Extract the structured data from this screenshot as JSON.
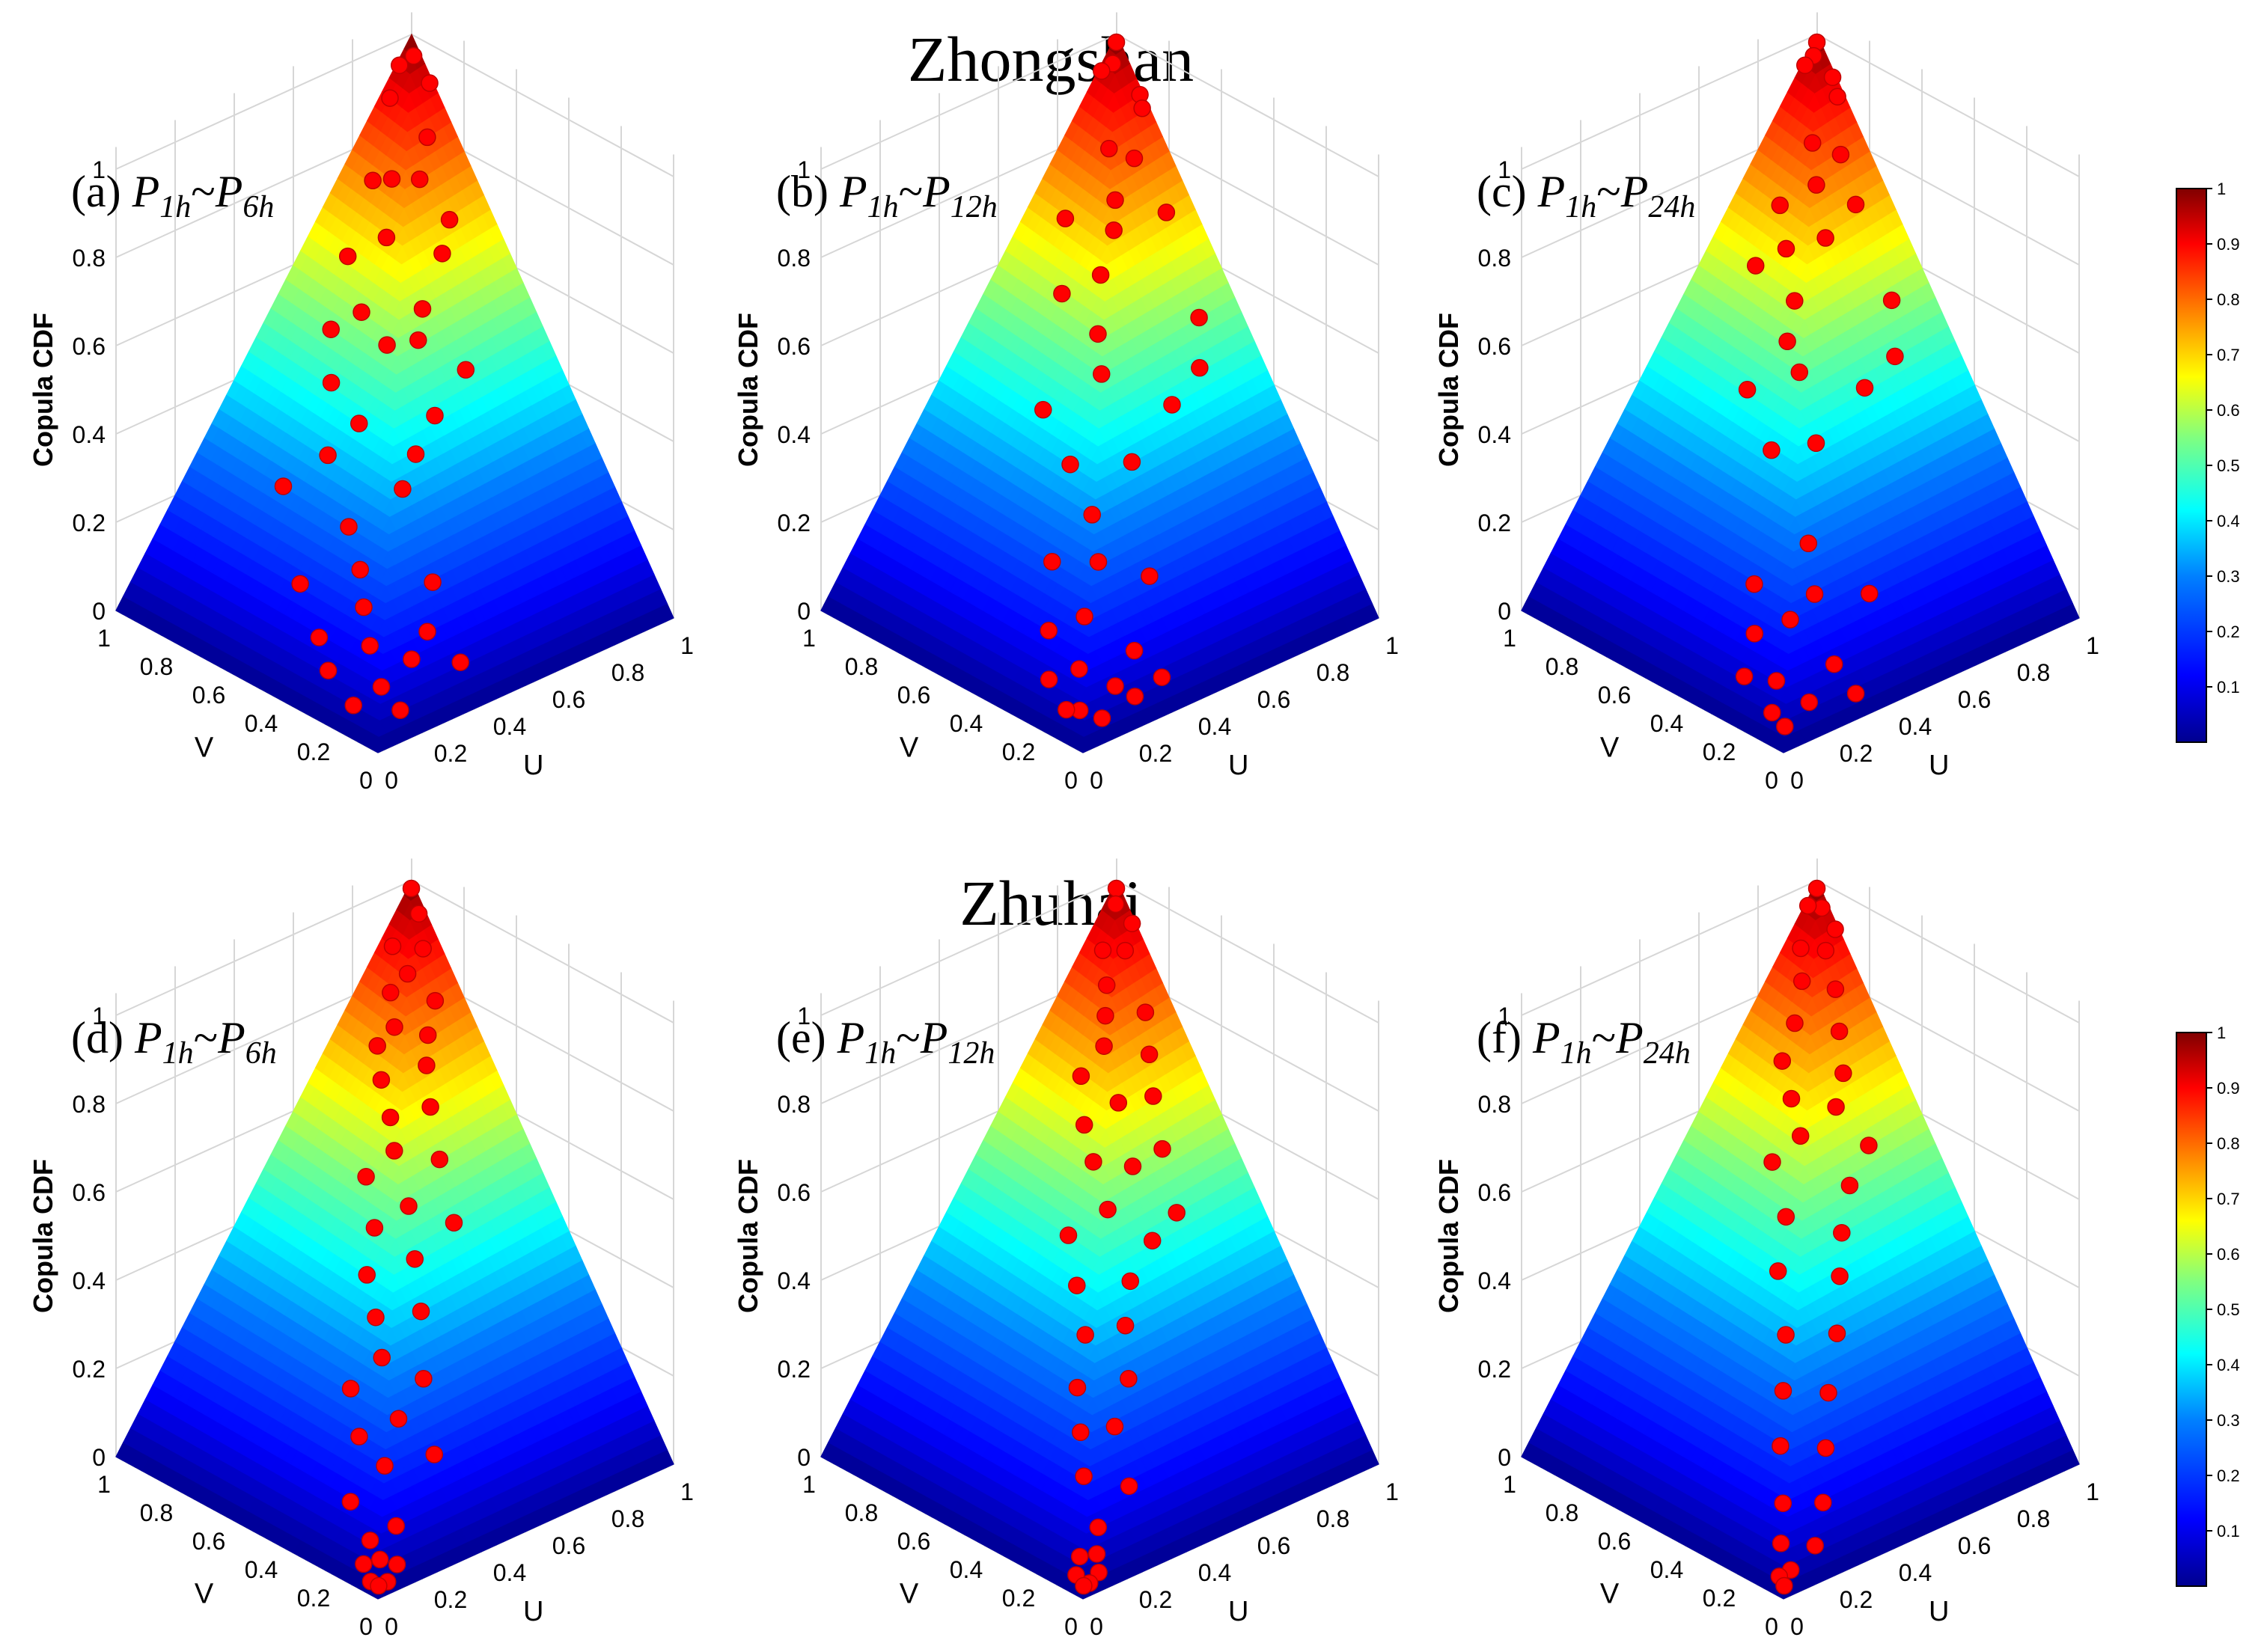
{
  "sections": [
    {
      "title": "Zhongshan"
    },
    {
      "title": "Zhuhai"
    }
  ],
  "axes": {
    "z_label": "Copula CDF",
    "u_label": "U",
    "v_label": "V",
    "z_ticks": [
      "0",
      "0.2",
      "0.4",
      "0.6",
      "0.8",
      "1"
    ],
    "u_ticks": [
      "0",
      "0.2",
      "0.4",
      "0.6",
      "0.8",
      "1"
    ],
    "v_ticks": [
      "0",
      "0.2",
      "0.4",
      "0.6",
      "0.8",
      "1"
    ]
  },
  "colorbar": {
    "ticks": [
      "0.1",
      "0.2",
      "0.3",
      "0.4",
      "0.5",
      "0.6",
      "0.7",
      "0.8",
      "0.9",
      "1"
    ],
    "colormap": [
      "#00008F",
      "#0000FF",
      "#0080FF",
      "#00FFFF",
      "#80FF80",
      "#FFFF00",
      "#FF8000",
      "#FF0000",
      "#800000"
    ]
  },
  "marker_color": "#FF0000",
  "chart_data": [
    {
      "type": "scatter",
      "panel": "(a)",
      "title_parts": {
        "prefix": "(a)",
        "p1": "P",
        "s1": "1h",
        "sep": "~",
        "p2": "P",
        "s2": "6h"
      },
      "xlabel": "U",
      "ylabel": "V",
      "zlabel": "Copula CDF",
      "xlim": [
        0,
        1
      ],
      "ylim": [
        0,
        1
      ],
      "zlim": [
        0,
        1
      ],
      "surface": "copula CDF C(u,v)",
      "points": [
        [
          0.98,
          0.97
        ],
        [
          0.95,
          0.99
        ],
        [
          0.99,
          0.92
        ],
        [
          0.9,
          0.97
        ],
        [
          0.92,
          0.85
        ],
        [
          0.85,
          0.8
        ],
        [
          0.8,
          0.85
        ],
        [
          0.88,
          0.72
        ],
        [
          0.78,
          0.9
        ],
        [
          0.72,
          0.78
        ],
        [
          0.82,
          0.68
        ],
        [
          0.66,
          0.86
        ],
        [
          0.7,
          0.62
        ],
        [
          0.6,
          0.74
        ],
        [
          0.55,
          0.8
        ],
        [
          0.65,
          0.58
        ],
        [
          0.58,
          0.62
        ],
        [
          0.48,
          0.72
        ],
        [
          0.74,
          0.5
        ],
        [
          0.45,
          0.58
        ],
        [
          0.6,
          0.46
        ],
        [
          0.38,
          0.62
        ],
        [
          0.5,
          0.42
        ],
        [
          0.3,
          0.7
        ],
        [
          0.42,
          0.38
        ],
        [
          0.3,
          0.45
        ],
        [
          0.25,
          0.35
        ],
        [
          0.38,
          0.22
        ],
        [
          0.18,
          0.5
        ],
        [
          0.2,
          0.28
        ],
        [
          0.12,
          0.36
        ],
        [
          0.3,
          0.15
        ],
        [
          0.22,
          0.12
        ],
        [
          0.15,
          0.2
        ],
        [
          0.1,
          0.1
        ],
        [
          0.08,
          0.28
        ],
        [
          0.35,
          0.08
        ],
        [
          0.05,
          0.15
        ],
        [
          0.12,
          0.05
        ]
      ]
    },
    {
      "type": "scatter",
      "panel": "(b)",
      "title_parts": {
        "prefix": "(b)",
        "p1": "P",
        "s1": "1h",
        "sep": "~",
        "p2": "P",
        "s2": "12h"
      },
      "xlabel": "U",
      "ylabel": "V",
      "zlabel": "Copula CDF",
      "xlim": [
        0,
        1
      ],
      "ylim": [
        0,
        1
      ],
      "zlim": [
        0,
        1
      ],
      "surface": "copula CDF C(u,v)",
      "points": [
        [
          0.99,
          0.99
        ],
        [
          0.96,
          0.97
        ],
        [
          0.94,
          0.99
        ],
        [
          0.99,
          0.9
        ],
        [
          0.98,
          0.88
        ],
        [
          0.9,
          0.82
        ],
        [
          0.85,
          0.86
        ],
        [
          0.8,
          0.78
        ],
        [
          0.92,
          0.72
        ],
        [
          0.72,
          0.88
        ],
        [
          0.76,
          0.74
        ],
        [
          0.68,
          0.7
        ],
        [
          0.62,
          0.78
        ],
        [
          0.88,
          0.55
        ],
        [
          0.6,
          0.62
        ],
        [
          0.82,
          0.48
        ],
        [
          0.55,
          0.55
        ],
        [
          0.7,
          0.45
        ],
        [
          0.45,
          0.66
        ],
        [
          0.52,
          0.4
        ],
        [
          0.4,
          0.5
        ],
        [
          0.35,
          0.36
        ],
        [
          0.3,
          0.28
        ],
        [
          0.42,
          0.22
        ],
        [
          0.25,
          0.4
        ],
        [
          0.2,
          0.22
        ],
        [
          0.15,
          0.3
        ],
        [
          0.28,
          0.12
        ],
        [
          0.12,
          0.15
        ],
        [
          0.08,
          0.22
        ],
        [
          0.18,
          0.08
        ],
        [
          0.06,
          0.08
        ],
        [
          0.1,
          0.04
        ],
        [
          0.05,
          0.12
        ],
        [
          0.22,
          0.05
        ],
        [
          0.32,
          0.06
        ]
      ]
    },
    {
      "type": "scatter",
      "panel": "(c)",
      "title_parts": {
        "prefix": "(c)",
        "p1": "P",
        "s1": "1h",
        "sep": "~",
        "p2": "P",
        "s2": "24h"
      },
      "xlabel": "U",
      "ylabel": "V",
      "zlabel": "Copula CDF",
      "xlim": [
        0,
        1
      ],
      "ylim": [
        0,
        1
      ],
      "zlim": [
        0,
        1
      ],
      "surface": "copula CDF C(u,v)",
      "points": [
        [
          0.99,
          0.99
        ],
        [
          0.97,
          0.98
        ],
        [
          0.95,
          0.99
        ],
        [
          0.99,
          0.93
        ],
        [
          0.98,
          0.9
        ],
        [
          0.92,
          0.82
        ],
        [
          0.86,
          0.86
        ],
        [
          0.82,
          0.8
        ],
        [
          0.9,
          0.74
        ],
        [
          0.75,
          0.86
        ],
        [
          0.78,
          0.72
        ],
        [
          0.7,
          0.78
        ],
        [
          0.65,
          0.84
        ],
        [
          0.88,
          0.58
        ],
        [
          0.64,
          0.68
        ],
        [
          0.58,
          0.64
        ],
        [
          0.82,
          0.5
        ],
        [
          0.55,
          0.56
        ],
        [
          0.7,
          0.48
        ],
        [
          0.48,
          0.68
        ],
        [
          0.5,
          0.44
        ],
        [
          0.42,
          0.52
        ],
        [
          0.35,
          0.3
        ],
        [
          0.3,
          0.22
        ],
        [
          0.45,
          0.18
        ],
        [
          0.22,
          0.36
        ],
        [
          0.2,
          0.2
        ],
        [
          0.15,
          0.28
        ],
        [
          0.26,
          0.1
        ],
        [
          0.1,
          0.14
        ],
        [
          0.08,
          0.24
        ],
        [
          0.14,
          0.06
        ],
        [
          0.05,
          0.1
        ],
        [
          0.04,
          0.04
        ],
        [
          0.28,
          0.04
        ]
      ]
    },
    {
      "type": "scatter",
      "panel": "(d)",
      "title_parts": {
        "prefix": "(d)",
        "p1": "P",
        "s1": "1h",
        "sep": "~",
        "p2": "P",
        "s2": "6h"
      },
      "xlabel": "U",
      "ylabel": "V",
      "zlabel": "Copula CDF",
      "xlim": [
        0,
        1
      ],
      "ylim": [
        0,
        1
      ],
      "zlim": [
        0,
        1
      ],
      "surface": "copula CDF C(u,v)",
      "points": [
        [
          0.99,
          0.99
        ],
        [
          0.98,
          0.95
        ],
        [
          0.95,
          0.9
        ],
        [
          0.9,
          0.96
        ],
        [
          0.88,
          0.88
        ],
        [
          0.92,
          0.82
        ],
        [
          0.84,
          0.9
        ],
        [
          0.8,
          0.84
        ],
        [
          0.86,
          0.78
        ],
        [
          0.76,
          0.86
        ],
        [
          0.82,
          0.74
        ],
        [
          0.72,
          0.8
        ],
        [
          0.78,
          0.68
        ],
        [
          0.68,
          0.72
        ],
        [
          0.64,
          0.66
        ],
        [
          0.74,
          0.6
        ],
        [
          0.58,
          0.7
        ],
        [
          0.6,
          0.56
        ],
        [
          0.7,
          0.5
        ],
        [
          0.52,
          0.6
        ],
        [
          0.55,
          0.48
        ],
        [
          0.45,
          0.55
        ],
        [
          0.5,
          0.4
        ],
        [
          0.4,
          0.46
        ],
        [
          0.35,
          0.38
        ],
        [
          0.28,
          0.42
        ],
        [
          0.42,
          0.3
        ],
        [
          0.3,
          0.26
        ],
        [
          0.22,
          0.32
        ],
        [
          0.35,
          0.18
        ],
        [
          0.2,
          0.2
        ],
        [
          0.12,
          0.24
        ],
        [
          0.15,
          0.1
        ],
        [
          0.08,
          0.12
        ],
        [
          0.06,
          0.06
        ],
        [
          0.1,
          0.04
        ],
        [
          0.04,
          0.1
        ],
        [
          0.05,
          0.02
        ],
        [
          0.02,
          0.05
        ],
        [
          0.02,
          0.02
        ]
      ]
    },
    {
      "type": "scatter",
      "panel": "(e)",
      "title_parts": {
        "prefix": "(e)",
        "p1": "P",
        "s1": "1h",
        "sep": "~",
        "p2": "P",
        "s2": "12h"
      },
      "xlabel": "U",
      "ylabel": "V",
      "zlabel": "Copula CDF",
      "xlim": [
        0,
        1
      ],
      "ylim": [
        0,
        1
      ],
      "zlim": [
        0,
        1
      ],
      "surface": "copula CDF C(u,v)",
      "points": [
        [
          0.99,
          0.99
        ],
        [
          0.97,
          0.97
        ],
        [
          0.99,
          0.93
        ],
        [
          0.94,
          0.9
        ],
        [
          0.9,
          0.94
        ],
        [
          0.86,
          0.88
        ],
        [
          0.92,
          0.8
        ],
        [
          0.82,
          0.84
        ],
        [
          0.88,
          0.74
        ],
        [
          0.78,
          0.8
        ],
        [
          0.84,
          0.68
        ],
        [
          0.72,
          0.82
        ],
        [
          0.74,
          0.7
        ],
        [
          0.8,
          0.6
        ],
        [
          0.66,
          0.74
        ],
        [
          0.7,
          0.6
        ],
        [
          0.62,
          0.66
        ],
        [
          0.76,
          0.5
        ],
        [
          0.58,
          0.56
        ],
        [
          0.66,
          0.48
        ],
        [
          0.5,
          0.62
        ],
        [
          0.55,
          0.44
        ],
        [
          0.44,
          0.52
        ],
        [
          0.48,
          0.38
        ],
        [
          0.38,
          0.42
        ],
        [
          0.42,
          0.3
        ],
        [
          0.3,
          0.36
        ],
        [
          0.32,
          0.24
        ],
        [
          0.24,
          0.28
        ],
        [
          0.28,
          0.14
        ],
        [
          0.18,
          0.2
        ],
        [
          0.14,
          0.1
        ],
        [
          0.1,
          0.06
        ],
        [
          0.06,
          0.08
        ],
        [
          0.08,
          0.03
        ],
        [
          0.03,
          0.06
        ],
        [
          0.04,
          0.02
        ],
        [
          0.02,
          0.02
        ]
      ]
    },
    {
      "type": "scatter",
      "panel": "(f)",
      "title_parts": {
        "prefix": "(f)",
        "p1": "P",
        "s1": "1h",
        "sep": "~",
        "p2": "P",
        "s2": "24h"
      },
      "xlabel": "U",
      "ylabel": "V",
      "zlabel": "Copula CDF",
      "xlim": [
        0,
        1
      ],
      "ylim": [
        0,
        1
      ],
      "zlim": [
        0,
        1
      ],
      "surface": "copula CDF C(u,v)",
      "points": [
        [
          0.99,
          0.99
        ],
        [
          0.98,
          0.96
        ],
        [
          0.96,
          0.99
        ],
        [
          0.99,
          0.92
        ],
        [
          0.94,
          0.9
        ],
        [
          0.9,
          0.95
        ],
        [
          0.92,
          0.84
        ],
        [
          0.86,
          0.9
        ],
        [
          0.88,
          0.78
        ],
        [
          0.8,
          0.86
        ],
        [
          0.84,
          0.72
        ],
        [
          0.74,
          0.84
        ],
        [
          0.78,
          0.68
        ],
        [
          0.7,
          0.76
        ],
        [
          0.82,
          0.6
        ],
        [
          0.66,
          0.68
        ],
        [
          0.72,
          0.56
        ],
        [
          0.6,
          0.72
        ],
        [
          0.64,
          0.5
        ],
        [
          0.54,
          0.6
        ],
        [
          0.58,
          0.44
        ],
        [
          0.46,
          0.54
        ],
        [
          0.5,
          0.36
        ],
        [
          0.38,
          0.42
        ],
        [
          0.4,
          0.28
        ],
        [
          0.3,
          0.34
        ],
        [
          0.32,
          0.2
        ],
        [
          0.22,
          0.26
        ],
        [
          0.24,
          0.12
        ],
        [
          0.14,
          0.16
        ],
        [
          0.16,
          0.06
        ],
        [
          0.08,
          0.1
        ],
        [
          0.06,
          0.04
        ],
        [
          0.03,
          0.05
        ],
        [
          0.02,
          0.02
        ]
      ]
    }
  ]
}
